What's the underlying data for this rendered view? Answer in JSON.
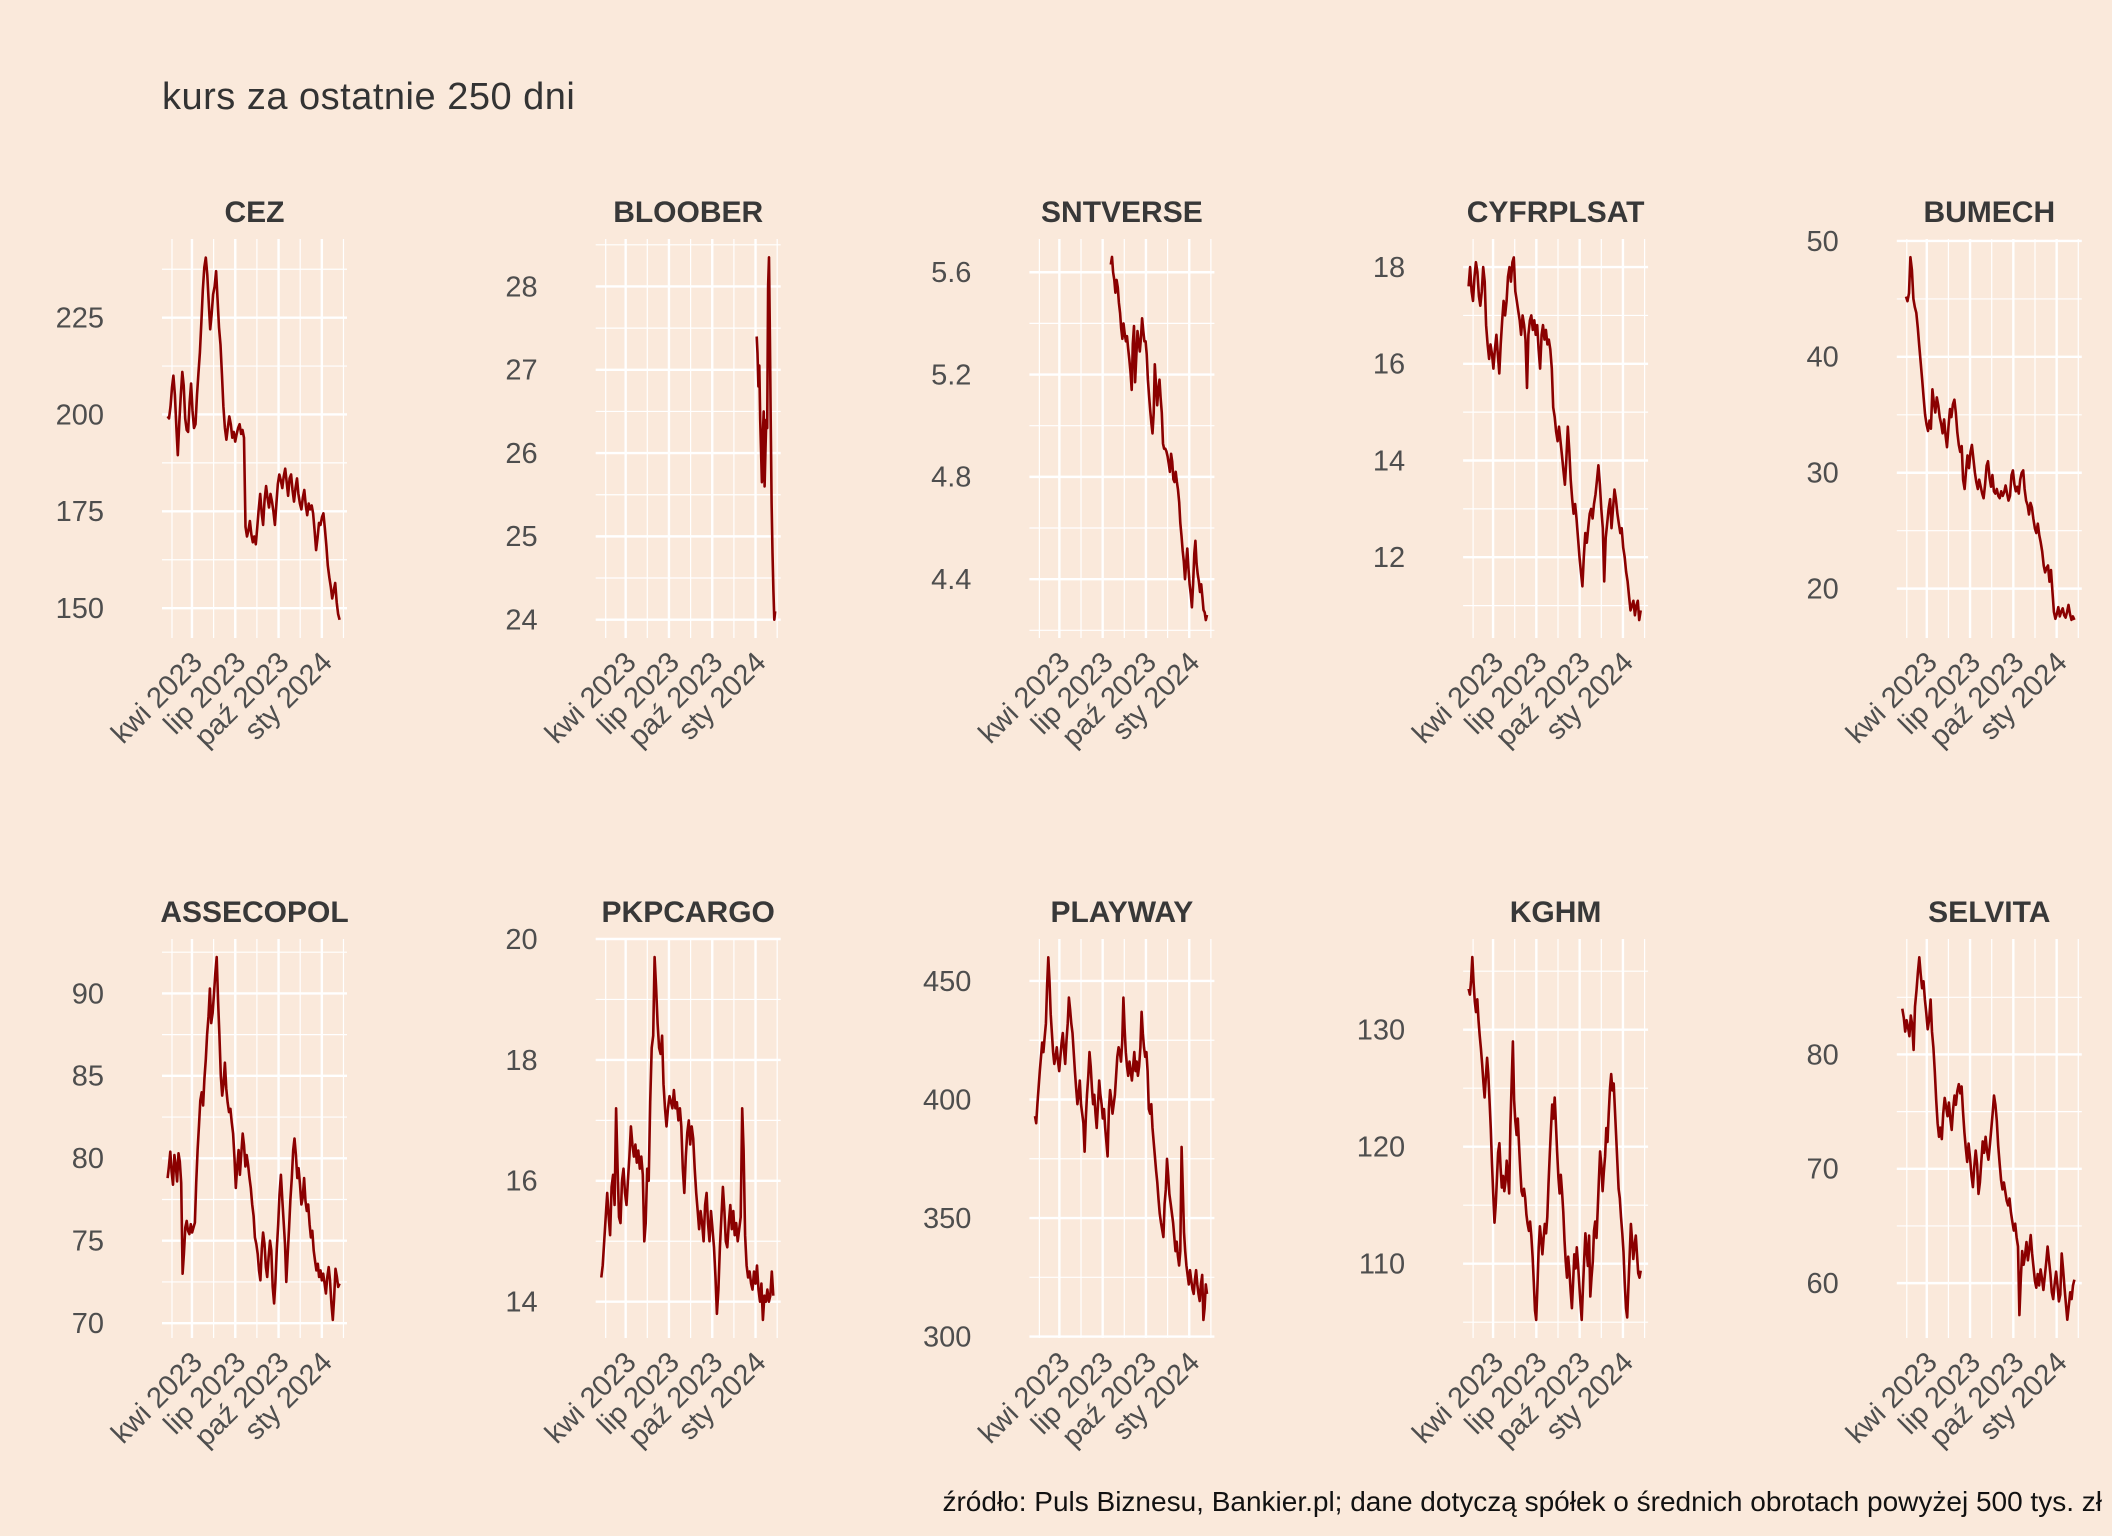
{
  "title": "kurs za ostatnie 250 dni",
  "source_note": "źródło: Puls Biznesu, Bankier.pl; dane dotyczą spółek o średnich obrotach powyżej 500 tys. zł",
  "colors": {
    "background": "#fae9db",
    "grid": "#ffffff",
    "line": "#8b0000",
    "axis_text": "#4e4e4e",
    "facet_title_text": "#383838",
    "main_title_text": "#333333",
    "footer_text": "#111111"
  },
  "x_axis": {
    "tick_labels": [
      "kwi 2023",
      "lip 2023",
      "paź 2023",
      "sty 2024"
    ],
    "major_fractions": [
      0.162,
      0.396,
      0.63,
      0.864
    ],
    "minor_fractions": [
      0.054,
      0.279,
      0.513,
      0.747,
      0.981
    ]
  },
  "chart_data": [
    {
      "type": "line",
      "title": "CEZ",
      "y_ticks": [
        150,
        175,
        200,
        225
      ],
      "ylim": [
        142.3,
        245.3
      ],
      "x_span": [
        0.03,
        0.96
      ],
      "values": [
        199.5,
        199,
        202,
        207,
        210,
        205,
        196.5,
        189.5,
        198,
        205,
        211,
        207.5,
        199,
        196,
        195.5,
        203,
        208,
        201,
        196.5,
        197.5,
        205,
        210.5,
        216,
        224,
        232,
        238,
        240.5,
        236,
        229,
        222,
        226,
        231,
        233,
        237,
        230,
        222.5,
        218,
        210,
        202,
        196.5,
        193.5,
        196.5,
        199.5,
        197.5,
        194,
        195.5,
        193,
        195,
        196.5,
        197.5,
        195,
        196,
        194,
        171,
        168.5,
        170,
        172.5,
        169,
        167,
        168.5,
        166.5,
        171,
        175.5,
        179.5,
        174.5,
        171.5,
        178,
        181.5,
        178.5,
        176,
        179.5,
        177.5,
        175,
        171.5,
        177,
        182,
        184.5,
        183,
        181,
        184,
        186,
        182.5,
        179,
        183.5,
        184.5,
        180.5,
        177.5,
        181,
        183.5,
        179.5,
        177,
        175.5,
        178.5,
        180.5,
        176.5,
        174,
        177,
        175.5,
        176.5,
        174.5,
        170,
        165,
        168,
        172,
        171.5,
        173.5,
        174.5,
        170.5,
        166,
        161,
        158,
        155.5,
        152.5,
        154.5,
        156.5,
        151.5,
        148.5,
        147
      ]
    },
    {
      "type": "line",
      "title": "BLOOBER",
      "y_ticks": [
        24,
        25,
        26,
        27,
        28
      ],
      "ylim": [
        23.78,
        28.57
      ],
      "x_span": [
        0.87,
        0.97
      ],
      "values": [
        27.4,
        27.2,
        26.8,
        27.05,
        26.4,
        26.0,
        25.65,
        26.2,
        26.5,
        25.6,
        26.05,
        26.4,
        26.3,
        28.0,
        28.35,
        27.4,
        26.4,
        25.4,
        24.8,
        24.35,
        24.0,
        24.1
      ]
    },
    {
      "type": "line",
      "title": "SNTVERSE",
      "y_ticks": [
        4.4,
        4.8,
        5.2,
        5.6
      ],
      "ylim": [
        4.17,
        5.73
      ],
      "x_span": [
        0.44,
        0.96
      ],
      "values": [
        5.63,
        5.66,
        5.6,
        5.57,
        5.52,
        5.57,
        5.54,
        5.48,
        5.44,
        5.38,
        5.34,
        5.4,
        5.36,
        5.33,
        5.35,
        5.3,
        5.26,
        5.21,
        5.14,
        5.32,
        5.39,
        5.17,
        5.27,
        5.37,
        5.33,
        5.29,
        5.34,
        5.42,
        5.37,
        5.33,
        5.33,
        5.28,
        5.18,
        5.12,
        5.06,
        5.01,
        4.97,
        5.05,
        5.24,
        5.16,
        5.08,
        5.14,
        5.18,
        5.11,
        5.05,
        4.93,
        4.91,
        4.91,
        4.9,
        4.88,
        4.85,
        4.82,
        4.89,
        4.86,
        4.79,
        4.78,
        4.82,
        4.78,
        4.75,
        4.7,
        4.62,
        4.57,
        4.51,
        4.47,
        4.4,
        4.46,
        4.52,
        4.44,
        4.38,
        4.34,
        4.29,
        4.38,
        4.5,
        4.55,
        4.46,
        4.42,
        4.39,
        4.35,
        4.38,
        4.33,
        4.28,
        4.27,
        4.24,
        4.26
      ]
    },
    {
      "type": "line",
      "title": "CYFRPLSAT",
      "y_ticks": [
        12,
        14,
        16,
        18
      ],
      "ylim": [
        10.33,
        18.58
      ],
      "x_span": [
        0.03,
        0.96
      ],
      "values": [
        17.6,
        18.0,
        17.5,
        17.3,
        17.8,
        18.1,
        17.9,
        17.4,
        17.2,
        17.5,
        18.0,
        17.7,
        16.8,
        16.4,
        16.1,
        16.4,
        16.2,
        15.9,
        16.3,
        16.6,
        16.2,
        15.8,
        16.4,
        16.9,
        17.3,
        17.0,
        17.3,
        17.8,
        18.0,
        17.7,
        18.1,
        18.2,
        17.5,
        17.3,
        17.1,
        16.9,
        16.6,
        17.0,
        16.8,
        16.5,
        15.5,
        16.6,
        16.9,
        17.0,
        16.7,
        16.9,
        16.6,
        16.8,
        16.3,
        15.9,
        16.6,
        16.8,
        16.5,
        16.7,
        16.4,
        16.5,
        16.3,
        15.9,
        15.1,
        14.9,
        14.6,
        14.4,
        14.7,
        14.4,
        14.1,
        13.8,
        13.5,
        14.0,
        14.7,
        14.2,
        13.6,
        13.2,
        12.9,
        13.1,
        12.8,
        12.4,
        12.0,
        11.7,
        11.4,
        12.0,
        12.5,
        12.3,
        12.6,
        12.9,
        13.0,
        12.8,
        13.1,
        13.3,
        13.6,
        13.9,
        13.5,
        13.0,
        12.6,
        11.5,
        12.4,
        12.7,
        13.0,
        13.2,
        12.6,
        13.0,
        13.4,
        13.2,
        12.9,
        12.7,
        12.5,
        12.6,
        12.2,
        12.0,
        11.7,
        11.5,
        11.2,
        10.9,
        11.0,
        11.1,
        10.8,
        11.0,
        11.1,
        10.7,
        10.9
      ]
    },
    {
      "type": "line",
      "title": "BUMECH",
      "y_ticks": [
        20,
        30,
        40,
        50
      ],
      "ylim": [
        15.74,
        50.17
      ],
      "x_span": [
        0.05,
        0.96
      ],
      "values": [
        45.2,
        44.8,
        45.5,
        48.6,
        47.5,
        45.0,
        44.3,
        43.8,
        42.5,
        41.0,
        39.5,
        38.0,
        36.5,
        35.0,
        34.2,
        33.6,
        34.5,
        33.8,
        37.2,
        36.0,
        35.2,
        36.5,
        35.8,
        34.8,
        34.2,
        33.4,
        34.6,
        33.2,
        32.2,
        34.0,
        35.5,
        34.8,
        35.9,
        36.3,
        35.2,
        33.5,
        32.4,
        31.8,
        32.3,
        29.4,
        28.6,
        30.2,
        31.5,
        30.4,
        31.8,
        32.4,
        31.2,
        30.0,
        29.2,
        28.6,
        29.4,
        28.8,
        28.2,
        27.8,
        29.0,
        30.6,
        31.0,
        29.6,
        28.8,
        29.8,
        28.4,
        28.2,
        28.6,
        28.0,
        27.8,
        28.4,
        28.0,
        28.3,
        28.9,
        28.2,
        27.6,
        28.0,
        29.8,
        30.2,
        29.0,
        28.4,
        28.8,
        28.2,
        29.4,
        30.0,
        30.2,
        28.6,
        27.6,
        27.2,
        26.4,
        27.4,
        27.0,
        26.0,
        25.2,
        24.8,
        25.6,
        24.6,
        24.0,
        23.2,
        22.0,
        21.4,
        21.8,
        22.0,
        20.6,
        21.6,
        19.8,
        18.0,
        17.4,
        17.8,
        18.4,
        17.6,
        18.0,
        18.3,
        17.7,
        17.5,
        18.0,
        18.6,
        17.8,
        17.3,
        17.6,
        17.3
      ]
    },
    {
      "type": "line",
      "title": "ASSECOPOL",
      "y_ticks": [
        70,
        75,
        80,
        85,
        90
      ],
      "ylim": [
        69.1,
        93.3
      ],
      "x_span": [
        0.03,
        0.96
      ],
      "values": [
        78.8,
        79.5,
        80.4,
        79.2,
        78.4,
        80.2,
        79.6,
        78.6,
        80.3,
        79.8,
        78.5,
        73.0,
        74.2,
        75.8,
        76.2,
        75.6,
        75.4,
        76.0,
        75.5,
        75.8,
        76.1,
        78.5,
        80.5,
        82.0,
        83.5,
        84.0,
        83.2,
        84.8,
        86.0,
        87.5,
        88.6,
        90.3,
        88.2,
        88.8,
        90.0,
        91.2,
        92.2,
        89.5,
        87.5,
        85.0,
        83.8,
        84.5,
        85.8,
        84.2,
        83.4,
        82.8,
        83.0,
        82.2,
        81.5,
        80.0,
        78.2,
        79.5,
        80.5,
        79.0,
        80.3,
        81.5,
        80.8,
        79.5,
        80.2,
        79.6,
        78.8,
        78.2,
        77.2,
        76.5,
        75.2,
        74.8,
        74.2,
        73.2,
        72.6,
        74.5,
        75.5,
        74.8,
        73.4,
        72.8,
        74.0,
        75.0,
        74.4,
        72.2,
        71.2,
        72.5,
        74.5,
        76.0,
        77.8,
        79.0,
        77.5,
        76.2,
        74.8,
        72.5,
        74.2,
        75.8,
        77.5,
        78.8,
        80.5,
        81.2,
        80.2,
        78.8,
        79.4,
        78.4,
        77.2,
        77.6,
        78.8,
        77.4,
        76.8,
        77.2,
        76.0,
        75.2,
        75.6,
        74.4,
        73.8,
        73.2,
        73.6,
        72.8,
        73.2,
        72.6,
        73.0,
        72.4,
        71.8,
        72.8,
        73.4,
        72.6,
        71.2,
        70.2,
        71.5,
        73.3,
        72.8,
        72.2,
        72.4
      ]
    },
    {
      "type": "line",
      "title": "PKPCARGO",
      "y_ticks": [
        14,
        16,
        18,
        20
      ],
      "ylim": [
        13.4,
        20.0
      ],
      "x_span": [
        0.03,
        0.96
      ],
      "values": [
        14.4,
        14.6,
        15.0,
        15.4,
        15.8,
        15.4,
        15.1,
        15.9,
        16.1,
        15.6,
        17.2,
        16.2,
        15.4,
        15.3,
        16.0,
        16.2,
        15.8,
        15.6,
        16.0,
        16.4,
        16.9,
        16.6,
        16.4,
        16.6,
        16.3,
        16.5,
        16.2,
        16.4,
        16.1,
        15.0,
        15.3,
        16.2,
        16.0,
        17.3,
        18.2,
        18.4,
        19.7,
        19.2,
        18.6,
        18.2,
        18.1,
        18.4,
        17.6,
        17.2,
        16.9,
        17.2,
        17.4,
        17.3,
        17.2,
        17.5,
        17.2,
        17.3,
        17.0,
        17.2,
        16.9,
        16.2,
        15.8,
        16.4,
        16.8,
        17.0,
        16.6,
        16.9,
        16.7,
        16.2,
        15.8,
        15.5,
        15.2,
        15.5,
        15.3,
        15.0,
        15.6,
        15.8,
        15.3,
        15.0,
        15.5,
        15.2,
        14.9,
        14.4,
        13.8,
        14.2,
        14.9,
        15.4,
        15.9,
        15.5,
        15.0,
        14.9,
        15.3,
        15.6,
        15.2,
        15.5,
        15.1,
        15.3,
        15.0,
        15.2,
        15.4,
        17.2,
        16.5,
        15.1,
        14.6,
        14.4,
        14.5,
        14.3,
        14.2,
        14.5,
        14.3,
        14.6,
        14.2,
        14.0,
        14.3,
        13.7,
        14.1,
        14.0,
        14.2,
        14.0,
        14.1,
        14.5,
        14.1
      ]
    },
    {
      "type": "line",
      "title": "PLAYWAY",
      "y_ticks": [
        300,
        350,
        400,
        450
      ],
      "ylim": [
        299.4,
        467.7
      ],
      "x_span": [
        0.03,
        0.96
      ],
      "values": [
        393,
        390,
        398,
        405,
        412,
        418,
        424,
        420,
        426,
        432,
        448,
        460,
        450,
        436,
        428,
        420,
        415,
        418,
        422,
        416,
        412,
        418,
        424,
        428,
        421,
        415,
        425,
        432,
        443,
        438,
        432,
        428,
        420,
        412,
        405,
        398,
        402,
        408,
        398,
        394,
        390,
        378,
        392,
        402,
        410,
        420,
        414,
        405,
        398,
        402,
        394,
        388,
        398,
        408,
        402,
        398,
        392,
        396,
        388,
        382,
        376,
        396,
        404,
        400,
        394,
        398,
        402,
        410,
        418,
        422,
        420,
        416,
        424,
        443,
        430,
        420,
        414,
        410,
        416,
        412,
        408,
        414,
        420,
        412,
        416,
        410,
        414,
        422,
        437,
        428,
        422,
        418,
        420,
        412,
        396,
        394,
        398,
        388,
        382,
        376,
        370,
        365,
        358,
        352,
        348,
        345,
        342,
        356,
        362,
        375,
        368,
        360,
        356,
        352,
        348,
        342,
        336,
        340,
        334,
        330,
        336,
        380,
        362,
        344,
        336,
        330,
        326,
        322,
        328,
        324,
        320,
        318,
        324,
        328,
        322,
        318,
        315,
        322,
        326,
        307,
        312,
        322,
        318
      ]
    },
    {
      "type": "line",
      "title": "KGHM",
      "y_ticks": [
        110,
        120,
        130
      ],
      "ylim": [
        103.65,
        137.75
      ],
      "x_span": [
        0.03,
        0.96
      ],
      "values": [
        133.5,
        133.0,
        134.2,
        136.2,
        134.0,
        132.4,
        131.5,
        132.6,
        130.8,
        129.5,
        128.4,
        127.0,
        125.5,
        124.2,
        126.0,
        127.6,
        126.2,
        124.0,
        121.5,
        118.5,
        116.0,
        113.5,
        115.0,
        117.2,
        119.5,
        120.3,
        118.2,
        116.5,
        117.5,
        116.2,
        117.0,
        118.8,
        117.4,
        116.0,
        121.8,
        125.6,
        129.0,
        124.0,
        122.2,
        121.0,
        122.4,
        120.2,
        118.0,
        116.2,
        115.8,
        116.4,
        115.6,
        114.2,
        113.4,
        112.8,
        113.6,
        112.4,
        110.6,
        108.4,
        106.0,
        105.2,
        108.2,
        111.4,
        113.2,
        112.0,
        110.8,
        112.2,
        113.4,
        112.6,
        114.0,
        116.8,
        119.4,
        121.6,
        123.6,
        122.4,
        124.2,
        122.0,
        119.6,
        117.4,
        116.0,
        117.6,
        116.2,
        114.4,
        112.0,
        110.2,
        108.8,
        110.6,
        109.4,
        107.6,
        106.2,
        108.4,
        110.8,
        109.6,
        111.4,
        110.0,
        108.2,
        106.6,
        105.2,
        107.8,
        110.4,
        112.6,
        111.2,
        109.8,
        112.4,
        107.2,
        108.8,
        110.2,
        112.8,
        113.6,
        112.2,
        114.6,
        117.2,
        119.6,
        118.4,
        116.2,
        117.8,
        119.2,
        121.6,
        120.4,
        122.8,
        125.0,
        126.2,
        124.8,
        125.4,
        123.2,
        121.0,
        118.6,
        116.4,
        115.6,
        114.0,
        112.6,
        111.0,
        108.4,
        106.2,
        105.4,
        108.0,
        110.6,
        113.4,
        112.0,
        110.4,
        111.6,
        112.4,
        110.8,
        109.2,
        108.8,
        109.4
      ]
    },
    {
      "type": "line",
      "title": "SELVITA",
      "y_ticks": [
        60,
        70,
        80
      ],
      "ylim": [
        55.2,
        90.1
      ],
      "x_span": [
        0.03,
        0.96
      ],
      "values": [
        84.0,
        83.2,
        82.0,
        83.0,
        82.4,
        81.6,
        83.4,
        82.6,
        80.4,
        84.2,
        85.6,
        87.2,
        88.5,
        87.0,
        85.8,
        86.4,
        84.8,
        83.6,
        82.2,
        83.0,
        84.8,
        82.0,
        80.6,
        78.5,
        76.0,
        74.0,
        72.8,
        73.6,
        72.6,
        74.8,
        76.2,
        75.4,
        74.6,
        75.8,
        74.4,
        73.4,
        75.2,
        76.4,
        75.6,
        76.8,
        77.4,
        76.6,
        77.2,
        75.0,
        73.2,
        71.8,
        70.6,
        72.2,
        71.0,
        69.4,
        68.4,
        70.2,
        71.6,
        70.4,
        67.8,
        68.8,
        70.6,
        72.4,
        71.4,
        72.8,
        71.6,
        70.8,
        72.0,
        73.4,
        74.8,
        76.4,
        75.6,
        74.2,
        72.0,
        70.4,
        69.0,
        68.2,
        68.8,
        68.0,
        67.2,
        66.8,
        67.4,
        66.2,
        65.4,
        64.6,
        65.2,
        64.0,
        63.2,
        57.2,
        60.4,
        62.8,
        61.6,
        62.4,
        63.6,
        62.0,
        63.0,
        64.2,
        62.6,
        61.4,
        60.2,
        59.6,
        60.8,
        59.8,
        61.2,
        60.4,
        59.4,
        60.6,
        61.8,
        63.2,
        62.0,
        60.8,
        59.2,
        58.6,
        60.0,
        61.0,
        59.8,
        58.4,
        59.0,
        62.6,
        61.2,
        59.6,
        58.2,
        56.8,
        58.0,
        59.2,
        58.6,
        59.8,
        60.3
      ]
    }
  ]
}
